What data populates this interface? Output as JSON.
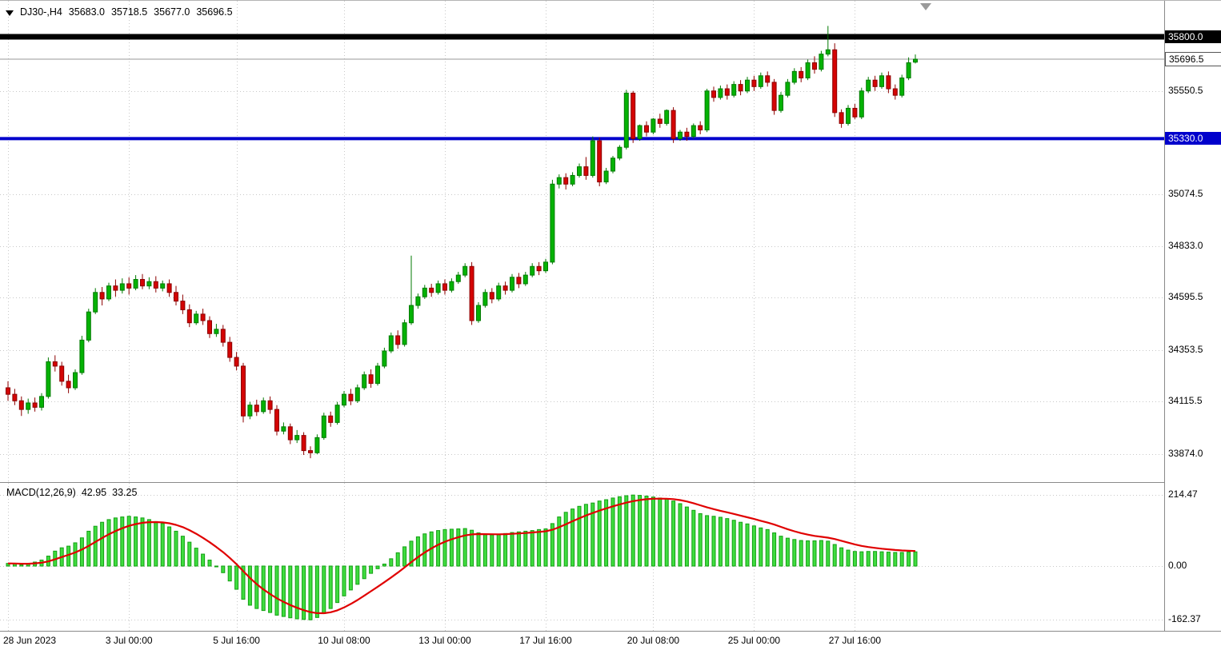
{
  "header": {
    "symbol": "DJ30-,H4",
    "open": "35683.0",
    "high": "35718.5",
    "low": "35677.0",
    "close": "35696.5"
  },
  "colors": {
    "bull_fill": "#04b204",
    "bull_stroke": "#027a02",
    "bear_fill": "#d40404",
    "bear_stroke": "#8c0000",
    "macd_hist_fill": "#3fdc3f",
    "macd_hist_stroke": "#12a012",
    "signal_line": "#e00000",
    "level_black": "#000000",
    "level_blue": "#0000cc",
    "current_price_line": "#999999",
    "grid": "#c8c8c8",
    "axis_text": "#000000"
  },
  "chart_data": {
    "type": "candlestick",
    "symbol": "DJ30-",
    "timeframe": "H4",
    "price_ticks": [
      {
        "label": "35550.5",
        "price": 35550.5
      },
      {
        "label": "35074.5",
        "price": 35074.5
      },
      {
        "label": "34833.0",
        "price": 34833.0
      },
      {
        "label": "34595.5",
        "price": 34595.5
      },
      {
        "label": "34353.5",
        "price": 34353.5
      },
      {
        "label": "34115.5",
        "price": 34115.5
      },
      {
        "label": "33874.0",
        "price": 33874.0
      }
    ],
    "levels": [
      {
        "label": "35800.0",
        "price": 35800.0,
        "color": "#000000",
        "thickness": 7
      },
      {
        "label": "35330.0",
        "price": 35330.0,
        "color": "#0000cc",
        "thickness": 4
      }
    ],
    "current_price": {
      "label": "35696.5",
      "price": 35696.5
    },
    "time_ticks": [
      {
        "label": "28 Jun 2023",
        "index": 0
      },
      {
        "label": "3 Jul 00:00",
        "index": 18
      },
      {
        "label": "5 Jul 16:00",
        "index": 34
      },
      {
        "label": "10 Jul 08:00",
        "index": 50
      },
      {
        "label": "13 Jul 00:00",
        "index": 65
      },
      {
        "label": "17 Jul 16:00",
        "index": 80
      },
      {
        "label": "20 Jul 08:00",
        "index": 96
      },
      {
        "label": "25 Jul 00:00",
        "index": 111
      },
      {
        "label": "27 Jul 16:00",
        "index": 126
      }
    ],
    "candles": [
      [
        34180,
        34210,
        34120,
        34150
      ],
      [
        34150,
        34175,
        34100,
        34120
      ],
      [
        34120,
        34140,
        34050,
        34080
      ],
      [
        34080,
        34130,
        34060,
        34110
      ],
      [
        34110,
        34135,
        34070,
        34090
      ],
      [
        34090,
        34155,
        34075,
        34140
      ],
      [
        34140,
        34320,
        34130,
        34300
      ],
      [
        34300,
        34330,
        34255,
        34280
      ],
      [
        34280,
        34300,
        34190,
        34210
      ],
      [
        34210,
        34240,
        34155,
        34180
      ],
      [
        34180,
        34265,
        34170,
        34250
      ],
      [
        34250,
        34420,
        34240,
        34400
      ],
      [
        34400,
        34545,
        34390,
        34530
      ],
      [
        34530,
        34640,
        34520,
        34620
      ],
      [
        34620,
        34645,
        34560,
        34590
      ],
      [
        34590,
        34665,
        34580,
        34650
      ],
      [
        34650,
        34680,
        34600,
        34630
      ],
      [
        34630,
        34685,
        34615,
        34660
      ],
      [
        34660,
        34690,
        34610,
        34640
      ],
      [
        34640,
        34700,
        34630,
        34680
      ],
      [
        34680,
        34705,
        34635,
        34650
      ],
      [
        34650,
        34690,
        34635,
        34670
      ],
      [
        34670,
        34695,
        34620,
        34640
      ],
      [
        34640,
        34675,
        34625,
        34660
      ],
      [
        34660,
        34680,
        34600,
        34620
      ],
      [
        34620,
        34650,
        34560,
        34580
      ],
      [
        34580,
        34610,
        34520,
        34540
      ],
      [
        34540,
        34565,
        34460,
        34480
      ],
      [
        34480,
        34535,
        34470,
        34520
      ],
      [
        34520,
        34545,
        34470,
        34490
      ],
      [
        34490,
        34510,
        34410,
        34430
      ],
      [
        34430,
        34475,
        34415,
        34450
      ],
      [
        34450,
        34470,
        34370,
        34390
      ],
      [
        34390,
        34415,
        34300,
        34320
      ],
      [
        34320,
        34345,
        34260,
        34280
      ],
      [
        34280,
        34295,
        34020,
        34050
      ],
      [
        34050,
        34115,
        34035,
        34100
      ],
      [
        34100,
        34125,
        34050,
        34070
      ],
      [
        34070,
        34135,
        34060,
        34120
      ],
      [
        34120,
        34140,
        34060,
        34080
      ],
      [
        34080,
        34100,
        33960,
        33980
      ],
      [
        33980,
        34020,
        33965,
        34000
      ],
      [
        34000,
        34015,
        33920,
        33940
      ],
      [
        33940,
        33985,
        33925,
        33960
      ],
      [
        33960,
        33975,
        33870,
        33890
      ],
      [
        33890,
        33910,
        33855,
        33880
      ],
      [
        33880,
        33965,
        33874,
        33950
      ],
      [
        33950,
        34065,
        33940,
        34050
      ],
      [
        34050,
        34070,
        34000,
        34020
      ],
      [
        34020,
        34115,
        34010,
        34100
      ],
      [
        34100,
        34165,
        34090,
        34150
      ],
      [
        34150,
        34175,
        34100,
        34120
      ],
      [
        34120,
        34195,
        34110,
        34180
      ],
      [
        34180,
        34255,
        34170,
        34240
      ],
      [
        34240,
        34265,
        34180,
        34200
      ],
      [
        34200,
        34295,
        34190,
        34280
      ],
      [
        34280,
        34365,
        34270,
        34350
      ],
      [
        34350,
        34435,
        34340,
        34420
      ],
      [
        34420,
        34445,
        34360,
        34380
      ],
      [
        34380,
        34495,
        34370,
        34480
      ],
      [
        34480,
        34790,
        34470,
        34560
      ],
      [
        34560,
        34615,
        34545,
        34600
      ],
      [
        34600,
        34655,
        34590,
        34640
      ],
      [
        34640,
        34660,
        34600,
        34620
      ],
      [
        34620,
        34675,
        34610,
        34660
      ],
      [
        34660,
        34680,
        34610,
        34630
      ],
      [
        34630,
        34685,
        34620,
        34670
      ],
      [
        34670,
        34715,
        34660,
        34700
      ],
      [
        34700,
        34755,
        34690,
        34740
      ],
      [
        34740,
        34760,
        34470,
        34490
      ],
      [
        34490,
        34575,
        34480,
        34560
      ],
      [
        34560,
        34635,
        34550,
        34620
      ],
      [
        34620,
        34640,
        34570,
        34590
      ],
      [
        34590,
        34665,
        34580,
        34650
      ],
      [
        34650,
        34670,
        34610,
        34630
      ],
      [
        34630,
        34705,
        34620,
        34690
      ],
      [
        34690,
        34710,
        34640,
        34660
      ],
      [
        34660,
        34715,
        34650,
        34700
      ],
      [
        34700,
        34755,
        34690,
        34740
      ],
      [
        34740,
        34760,
        34700,
        34720
      ],
      [
        34720,
        34775,
        34710,
        34760
      ],
      [
        34760,
        35140,
        34750,
        35120
      ],
      [
        35120,
        35165,
        35100,
        35150
      ],
      [
        35150,
        35170,
        35095,
        35120
      ],
      [
        35120,
        35175,
        35110,
        35160
      ],
      [
        35160,
        35215,
        35150,
        35200
      ],
      [
        35200,
        35245,
        35140,
        35160
      ],
      [
        35160,
        35340,
        35150,
        35320
      ],
      [
        35320,
        35335,
        35110,
        35130
      ],
      [
        35130,
        35195,
        35120,
        35180
      ],
      [
        35180,
        35250,
        35170,
        35240
      ],
      [
        35240,
        35300,
        35230,
        35290
      ],
      [
        35290,
        35555,
        35280,
        35540
      ],
      [
        35540,
        35550,
        35310,
        35330
      ],
      [
        35330,
        35395,
        35320,
        35390
      ],
      [
        35390,
        35410,
        35340,
        35360
      ],
      [
        35360,
        35425,
        35350,
        35420
      ],
      [
        35420,
        35445,
        35380,
        35400
      ],
      [
        35400,
        35465,
        35390,
        35460
      ],
      [
        35460,
        35475,
        35310,
        35330
      ],
      [
        35330,
        35370,
        35320,
        35360
      ],
      [
        35360,
        35380,
        35320,
        35340
      ],
      [
        35340,
        35400,
        35330,
        35390
      ],
      [
        35390,
        35410,
        35350,
        35370
      ],
      [
        35370,
        35560,
        35360,
        35550
      ],
      [
        35550,
        35570,
        35500,
        35520
      ],
      [
        35520,
        35575,
        35510,
        35560
      ],
      [
        35560,
        35580,
        35510,
        35530
      ],
      [
        35530,
        35595,
        35520,
        35580
      ],
      [
        35580,
        35600,
        35530,
        35550
      ],
      [
        35550,
        35615,
        35540,
        35600
      ],
      [
        35600,
        35620,
        35550,
        35570
      ],
      [
        35570,
        35635,
        35560,
        35620
      ],
      [
        35620,
        35640,
        35570,
        35590
      ],
      [
        35590,
        35605,
        35440,
        35460
      ],
      [
        35460,
        35545,
        35450,
        35530
      ],
      [
        35530,
        35605,
        35520,
        35590
      ],
      [
        35590,
        35655,
        35580,
        35640
      ],
      [
        35640,
        35660,
        35590,
        35610
      ],
      [
        35610,
        35695,
        35600,
        35680
      ],
      [
        35680,
        35710,
        35630,
        35650
      ],
      [
        35650,
        35735,
        35640,
        35720
      ],
      [
        35720,
        35850,
        35710,
        35740
      ],
      [
        35740,
        35770,
        35430,
        35450
      ],
      [
        35450,
        35465,
        35380,
        35400
      ],
      [
        35400,
        35485,
        35390,
        35470
      ],
      [
        35470,
        35490,
        35420,
        35430
      ],
      [
        35430,
        35565,
        35420,
        35550
      ],
      [
        35550,
        35615,
        35540,
        35600
      ],
      [
        35600,
        35620,
        35550,
        35570
      ],
      [
        35570,
        35635,
        35560,
        35620
      ],
      [
        35620,
        35640,
        35540,
        35560
      ],
      [
        35560,
        35580,
        35510,
        35530
      ],
      [
        35530,
        35625,
        35520,
        35610
      ],
      [
        35610,
        35705,
        35600,
        35680
      ],
      [
        35683,
        35718.5,
        35677,
        35696.5
      ]
    ],
    "macd": {
      "title": "MACD(12,26,9)",
      "macd_value": "42.95",
      "signal_value": "33.25",
      "axis_ticks": [
        {
          "label": "214.47",
          "value": 214.47
        },
        {
          "label": "0.00",
          "value": 0
        },
        {
          "label": "-162.37",
          "value": -162.37
        }
      ],
      "histogram": [
        8,
        6,
        4,
        8,
        12,
        18,
        30,
        45,
        55,
        60,
        70,
        85,
        105,
        120,
        132,
        140,
        145,
        148,
        150,
        148,
        145,
        140,
        134,
        128,
        118,
        105,
        90,
        72,
        54,
        36,
        18,
        0,
        -20,
        -45,
        -70,
        -100,
        -118,
        -128,
        -134,
        -140,
        -148,
        -152,
        -156,
        -159,
        -161,
        -162,
        -155,
        -143,
        -128,
        -110,
        -90,
        -72,
        -55,
        -38,
        -22,
        -8,
        6,
        22,
        40,
        58,
        75,
        88,
        97,
        103,
        107,
        110,
        111,
        112,
        113,
        108,
        100,
        96,
        94,
        95,
        98,
        101,
        103,
        105,
        107,
        110,
        112,
        128,
        148,
        162,
        172,
        180,
        186,
        190,
        196,
        200,
        205,
        209,
        212,
        214,
        213,
        211,
        208,
        205,
        202,
        196,
        188,
        178,
        168,
        158,
        152,
        150,
        147,
        143,
        138,
        132,
        127,
        121,
        115,
        110,
        100,
        90,
        84,
        80,
        77,
        76,
        76,
        77,
        75,
        65,
        55,
        48,
        44,
        43,
        44,
        44,
        43,
        42,
        41,
        41,
        42,
        42.95
      ]
    }
  }
}
